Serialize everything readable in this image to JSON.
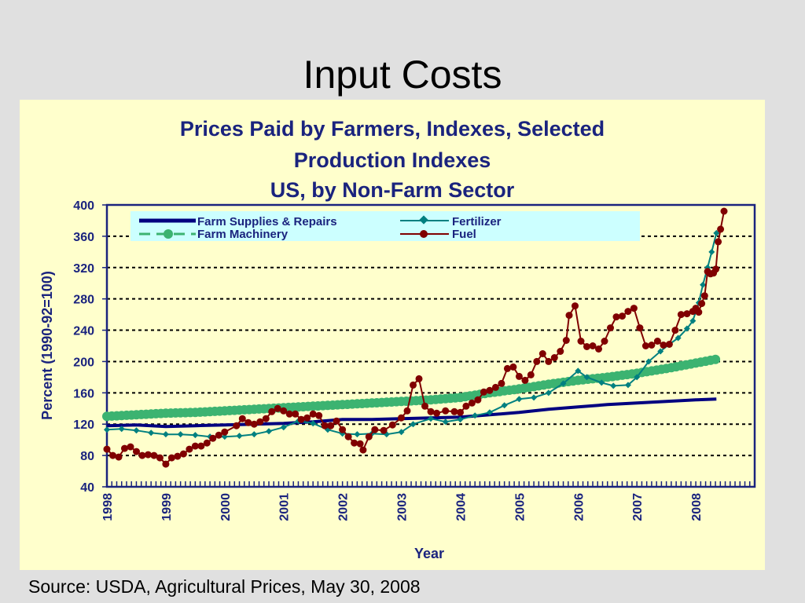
{
  "slide": {
    "title": "Input Costs",
    "source": "Source: USDA, Agricultural Prices, May 30, 2008"
  },
  "colors": {
    "background": "#e0e0e0",
    "panel": "#ffffcc",
    "legend_box": "#ccffff",
    "text_navy": "#1a237e",
    "farm_supplies": "#000080",
    "fertilizer": "#008080",
    "farm_machinery": "#3cb371",
    "fuel": "#800000"
  },
  "chart_data": {
    "type": "line",
    "title_lines": [
      "Prices Paid by Farmers, Indexes, Selected",
      "Production Indexes",
      "US, by Non-Farm Sector"
    ],
    "xlabel": "Year",
    "ylabel": "Percent (1990-92=100)",
    "ylim": [
      40,
      400
    ],
    "yticks": [
      40,
      80,
      120,
      160,
      200,
      240,
      280,
      320,
      360,
      400
    ],
    "xlim": [
      1998,
      2009
    ],
    "xticks": [
      1998,
      1999,
      2000,
      2001,
      2002,
      2003,
      2004,
      2005,
      2006,
      2007,
      2008
    ],
    "grid": "horizontal-dotted",
    "legend_position": "top",
    "series": [
      {
        "name": "Farm Supplies & Repairs",
        "style": "thick-line",
        "points": [
          [
            1998.0,
            118
          ],
          [
            1998.5,
            119
          ],
          [
            1999.0,
            117
          ],
          [
            1999.5,
            118
          ],
          [
            2000.0,
            119
          ],
          [
            2000.5,
            120
          ],
          [
            2001.0,
            121
          ],
          [
            2001.5,
            123
          ],
          [
            2002.0,
            126
          ],
          [
            2002.5,
            126
          ],
          [
            2003.0,
            127
          ],
          [
            2003.5,
            128
          ],
          [
            2004.0,
            129
          ],
          [
            2004.5,
            132
          ],
          [
            2005.0,
            135
          ],
          [
            2005.5,
            139
          ],
          [
            2006.0,
            142
          ],
          [
            2006.5,
            145
          ],
          [
            2007.0,
            147
          ],
          [
            2007.5,
            149
          ],
          [
            2008.0,
            151
          ],
          [
            2008.35,
            152
          ]
        ]
      },
      {
        "name": "Fertilizer",
        "style": "diamond-line",
        "points": [
          [
            1998.0,
            113
          ],
          [
            1998.25,
            114
          ],
          [
            1998.5,
            112
          ],
          [
            1998.75,
            109
          ],
          [
            1999.0,
            107
          ],
          [
            1999.25,
            107
          ],
          [
            1999.5,
            106
          ],
          [
            1999.75,
            104
          ],
          [
            2000.0,
            104
          ],
          [
            2000.25,
            105
          ],
          [
            2000.5,
            107
          ],
          [
            2000.75,
            111
          ],
          [
            2001.0,
            116
          ],
          [
            2001.25,
            124
          ],
          [
            2001.5,
            121
          ],
          [
            2001.75,
            113
          ],
          [
            2002.0,
            108
          ],
          [
            2002.25,
            107
          ],
          [
            2002.5,
            108
          ],
          [
            2002.75,
            107
          ],
          [
            2003.0,
            110
          ],
          [
            2003.2,
            120
          ],
          [
            2003.5,
            127
          ],
          [
            2003.75,
            123
          ],
          [
            2004.0,
            126
          ],
          [
            2004.25,
            131
          ],
          [
            2004.5,
            135
          ],
          [
            2004.75,
            144
          ],
          [
            2005.0,
            152
          ],
          [
            2005.25,
            154
          ],
          [
            2005.5,
            160
          ],
          [
            2005.75,
            172
          ],
          [
            2006.0,
            188
          ],
          [
            2006.15,
            180
          ],
          [
            2006.4,
            173
          ],
          [
            2006.6,
            169
          ],
          [
            2006.85,
            170
          ],
          [
            2007.0,
            180
          ],
          [
            2007.2,
            200
          ],
          [
            2007.4,
            213
          ],
          [
            2007.55,
            222
          ],
          [
            2007.7,
            230
          ],
          [
            2007.85,
            242
          ],
          [
            2007.95,
            252
          ],
          [
            2008.05,
            275
          ],
          [
            2008.12,
            298
          ],
          [
            2008.2,
            320
          ],
          [
            2008.27,
            340
          ],
          [
            2008.35,
            364
          ]
        ]
      },
      {
        "name": "Farm Machinery",
        "style": "circle-dash",
        "points": [
          [
            1998.0,
            130
          ],
          [
            1998.5,
            132
          ],
          [
            1999.0,
            134
          ],
          [
            1999.5,
            135
          ],
          [
            2000.0,
            137
          ],
          [
            2000.5,
            139
          ],
          [
            2001.0,
            141
          ],
          [
            2001.5,
            143
          ],
          [
            2002.0,
            145
          ],
          [
            2002.5,
            147
          ],
          [
            2003.0,
            149
          ],
          [
            2003.5,
            151
          ],
          [
            2004.0,
            154
          ],
          [
            2004.5,
            160
          ],
          [
            2005.0,
            165
          ],
          [
            2005.5,
            171
          ],
          [
            2006.0,
            176
          ],
          [
            2006.5,
            180
          ],
          [
            2007.0,
            185
          ],
          [
            2007.5,
            191
          ],
          [
            2008.0,
            198
          ],
          [
            2008.35,
            203
          ]
        ]
      },
      {
        "name": "Fuel",
        "style": "circle-line",
        "points": [
          [
            1998.0,
            88
          ],
          [
            1998.1,
            80
          ],
          [
            1998.2,
            78
          ],
          [
            1998.3,
            89
          ],
          [
            1998.4,
            91
          ],
          [
            1998.5,
            85
          ],
          [
            1998.6,
            80
          ],
          [
            1998.7,
            81
          ],
          [
            1998.8,
            80
          ],
          [
            1998.9,
            77
          ],
          [
            1999.0,
            69
          ],
          [
            1999.1,
            77
          ],
          [
            1999.2,
            79
          ],
          [
            1999.3,
            82
          ],
          [
            1999.4,
            88
          ],
          [
            1999.5,
            92
          ],
          [
            1999.6,
            92
          ],
          [
            1999.7,
            96
          ],
          [
            1999.8,
            102
          ],
          [
            1999.9,
            106
          ],
          [
            2000.0,
            110
          ],
          [
            2000.2,
            118
          ],
          [
            2000.3,
            127
          ],
          [
            2000.4,
            122
          ],
          [
            2000.5,
            120
          ],
          [
            2000.6,
            123
          ],
          [
            2000.7,
            127
          ],
          [
            2000.8,
            136
          ],
          [
            2000.9,
            140
          ],
          [
            2001.0,
            137
          ],
          [
            2001.1,
            133
          ],
          [
            2001.2,
            133
          ],
          [
            2001.3,
            126
          ],
          [
            2001.4,
            128
          ],
          [
            2001.5,
            133
          ],
          [
            2001.6,
            131
          ],
          [
            2001.7,
            118
          ],
          [
            2001.8,
            118
          ],
          [
            2001.9,
            124
          ],
          [
            2002.0,
            113
          ],
          [
            2002.1,
            104
          ],
          [
            2002.2,
            96
          ],
          [
            2002.3,
            95
          ],
          [
            2002.35,
            87
          ],
          [
            2002.45,
            104
          ],
          [
            2002.55,
            113
          ],
          [
            2002.7,
            112
          ],
          [
            2002.85,
            119
          ],
          [
            2003.0,
            128
          ],
          [
            2003.1,
            137
          ],
          [
            2003.2,
            170
          ],
          [
            2003.3,
            178
          ],
          [
            2003.4,
            143
          ],
          [
            2003.5,
            136
          ],
          [
            2003.6,
            134
          ],
          [
            2003.75,
            137
          ],
          [
            2003.9,
            136
          ],
          [
            2004.0,
            135
          ],
          [
            2004.1,
            143
          ],
          [
            2004.2,
            147
          ],
          [
            2004.3,
            151
          ],
          [
            2004.4,
            161
          ],
          [
            2004.5,
            163
          ],
          [
            2004.6,
            167
          ],
          [
            2004.7,
            172
          ],
          [
            2004.8,
            191
          ],
          [
            2004.9,
            193
          ],
          [
            2005.0,
            181
          ],
          [
            2005.1,
            176
          ],
          [
            2005.2,
            183
          ],
          [
            2005.3,
            200
          ],
          [
            2005.4,
            210
          ],
          [
            2005.5,
            200
          ],
          [
            2005.6,
            205
          ],
          [
            2005.7,
            213
          ],
          [
            2005.8,
            227
          ],
          [
            2005.85,
            259
          ],
          [
            2005.95,
            271
          ],
          [
            2006.05,
            226
          ],
          [
            2006.15,
            219
          ],
          [
            2006.25,
            220
          ],
          [
            2006.35,
            216
          ],
          [
            2006.45,
            226
          ],
          [
            2006.55,
            243
          ],
          [
            2006.65,
            257
          ],
          [
            2006.75,
            258
          ],
          [
            2006.85,
            264
          ],
          [
            2006.95,
            268
          ],
          [
            2007.05,
            243
          ],
          [
            2007.15,
            220
          ],
          [
            2007.25,
            221
          ],
          [
            2007.35,
            226
          ],
          [
            2007.45,
            221
          ],
          [
            2007.55,
            222
          ],
          [
            2007.65,
            240
          ],
          [
            2007.75,
            260
          ],
          [
            2007.85,
            261
          ],
          [
            2007.95,
            264
          ],
          [
            2008.0,
            268
          ],
          [
            2008.05,
            263
          ],
          [
            2008.1,
            274
          ],
          [
            2008.15,
            284
          ],
          [
            2008.2,
            315
          ],
          [
            2008.25,
            312
          ],
          [
            2008.3,
            313
          ],
          [
            2008.34,
            318
          ],
          [
            2008.38,
            353
          ],
          [
            2008.42,
            369
          ],
          [
            2008.48,
            392
          ]
        ]
      }
    ]
  }
}
